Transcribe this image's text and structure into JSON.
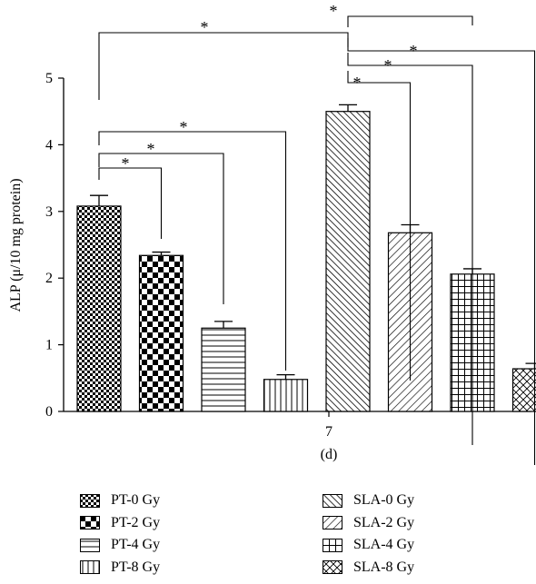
{
  "chart_data": {
    "type": "bar",
    "title": "",
    "xlabel": "",
    "ylabel": "ALP (μ/10 mg protein)",
    "ylim": [
      0,
      5
    ],
    "y_ticks": [
      "0",
      "1",
      "2",
      "3",
      "4",
      "5"
    ],
    "x_tick": "7",
    "panel_label": "(d)",
    "significance_marker": "*",
    "grid": false,
    "legend_position": "bottom, two columns",
    "series": [
      {
        "name": "PT-0 Gy",
        "value": 3.08,
        "error": 0.16,
        "pattern": "fine-checker"
      },
      {
        "name": "PT-2 Gy",
        "value": 2.34,
        "error": 0.05,
        "pattern": "checker"
      },
      {
        "name": "PT-4 Gy",
        "value": 1.25,
        "error": 0.1,
        "pattern": "horizontal-lines"
      },
      {
        "name": "PT-8 Gy",
        "value": 0.48,
        "error": 0.07,
        "pattern": "vertical-lines"
      },
      {
        "name": "SLA-0 Gy",
        "value": 4.5,
        "error": 0.1,
        "pattern": "diagonal-dense"
      },
      {
        "name": "SLA-2 Gy",
        "value": 2.68,
        "error": 0.12,
        "pattern": "diagonal-back"
      },
      {
        "name": "SLA-4 Gy",
        "value": 2.06,
        "error": 0.08,
        "pattern": "grid"
      },
      {
        "name": "SLA-8 Gy",
        "value": 0.64,
        "error": 0.08,
        "pattern": "diamond"
      }
    ],
    "comparisons": [
      {
        "from": 0,
        "to": 1
      },
      {
        "from": 0,
        "to": 2
      },
      {
        "from": 0,
        "to": 3
      },
      {
        "from": 4,
        "to": 5
      },
      {
        "from": 4,
        "to": 6
      },
      {
        "from": 4,
        "to": 7
      },
      {
        "from": 0,
        "to": 4
      },
      {
        "from": 4,
        "to": 6,
        "top": true
      }
    ]
  }
}
